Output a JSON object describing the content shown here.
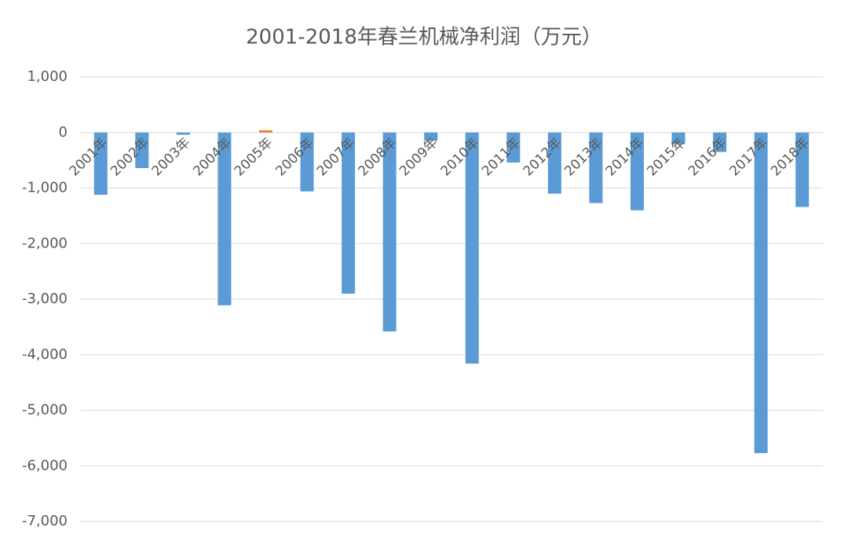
{
  "chart_data": {
    "type": "bar",
    "title": "2001-2018年春兰机械净利润（万元）",
    "categories": [
      "2001年",
      "2002年",
      "2003年",
      "2004年",
      "2005年",
      "2006年",
      "2007年",
      "2008年",
      "2009年",
      "2010年",
      "2011年",
      "2012年",
      "2013年",
      "2014年",
      "2015年",
      "2016年",
      "2017年",
      "2018年"
    ],
    "values": [
      -1120,
      -640,
      -40,
      -3110,
      40,
      -1060,
      -2900,
      -3580,
      -150,
      -4160,
      -540,
      -1100,
      -1270,
      -1400,
      -210,
      -350,
      -5770,
      -1340
    ],
    "colors": [
      "#5b9bd5",
      "#5b9bd5",
      "#5b9bd5",
      "#5b9bd5",
      "#ed7d31",
      "#5b9bd5",
      "#5b9bd5",
      "#5b9bd5",
      "#5b9bd5",
      "#5b9bd5",
      "#5b9bd5",
      "#5b9bd5",
      "#5b9bd5",
      "#5b9bd5",
      "#5b9bd5",
      "#5b9bd5",
      "#5b9bd5",
      "#5b9bd5"
    ],
    "ylim": [
      -7000,
      1000
    ],
    "yticks": [
      {
        "value": 1000,
        "label": "1,000"
      },
      0,
      {
        "value": -1000,
        "label": "-1,000"
      },
      {
        "value": -2000,
        "label": "-2,000"
      },
      {
        "value": -3000,
        "label": "-3,000"
      },
      {
        "value": -4000,
        "label": "-4,000"
      },
      {
        "value": -5000,
        "label": "-5,000"
      },
      {
        "value": -6000,
        "label": "-6,000"
      },
      {
        "value": -7000,
        "label": "-7,000"
      }
    ],
    "grid": true
  }
}
